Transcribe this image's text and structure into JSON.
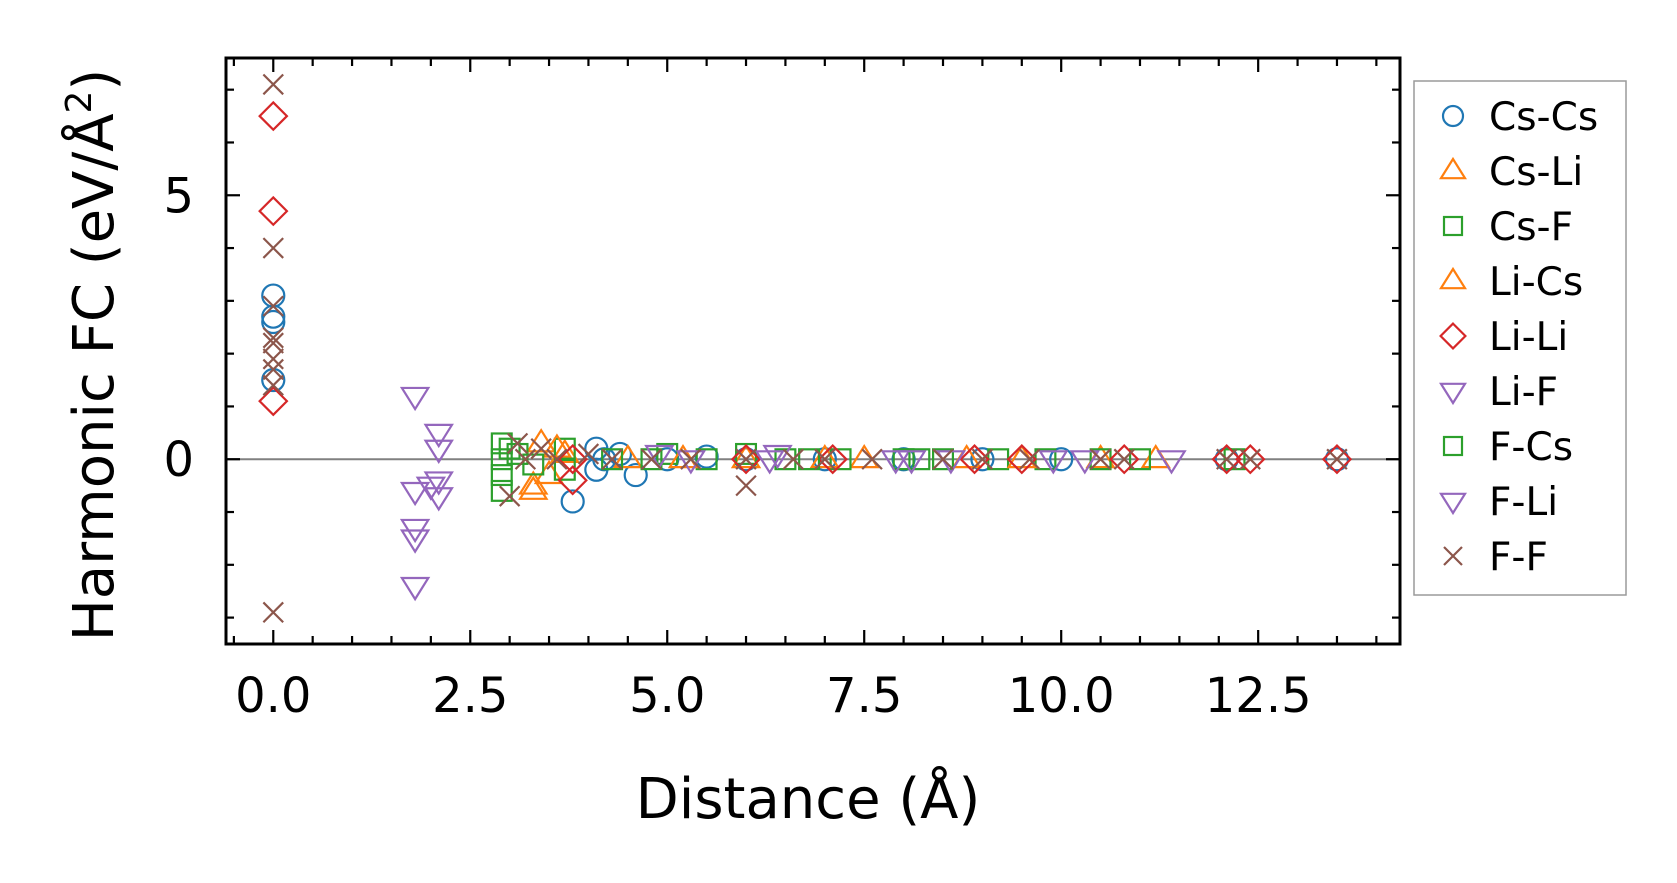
{
  "chart_data": {
    "type": "scatter",
    "xlabel": "Distance (Å)",
    "ylabel": "Harmonic FC (eV/Å",
    "ylabel_sup": "2",
    "ylabel_close": ")",
    "xlim": [
      -0.6,
      14.3
    ],
    "ylim": [
      -3.5,
      7.6
    ],
    "x_ticks": [
      0.0,
      2.5,
      5.0,
      7.5,
      10.0,
      12.5
    ],
    "x_tick_labels": [
      "0.0",
      "2.5",
      "5.0",
      "7.5",
      "10.0",
      "12.5"
    ],
    "y_ticks": [
      0,
      5
    ],
    "y_tick_labels": [
      "0",
      "5"
    ],
    "grid": false,
    "zero_line": true,
    "legend_position": "right",
    "series": [
      {
        "name": "Cs-Cs",
        "marker": "circle",
        "color": "#1f77b4",
        "points": [
          [
            0.0,
            3.1
          ],
          [
            0.0,
            2.7
          ],
          [
            0.0,
            2.6
          ],
          [
            0.0,
            1.5
          ],
          [
            3.8,
            -0.8
          ],
          [
            4.1,
            0.2
          ],
          [
            4.1,
            -0.2
          ],
          [
            4.2,
            0.0
          ],
          [
            4.4,
            0.1
          ],
          [
            4.6,
            -0.3
          ],
          [
            5.0,
            0.0
          ],
          [
            5.5,
            0.05
          ],
          [
            6.0,
            0.0
          ],
          [
            7.0,
            0.0
          ],
          [
            8.0,
            0.0
          ],
          [
            9.0,
            0.0
          ],
          [
            10.0,
            0.0
          ],
          [
            12.1,
            0.0
          ],
          [
            13.5,
            0.0
          ]
        ]
      },
      {
        "name": "Cs-Li",
        "marker": "triangle-up",
        "color": "#ff7f0e",
        "points": [
          [
            3.3,
            -0.6
          ],
          [
            3.4,
            0.3
          ],
          [
            3.5,
            -0.3
          ],
          [
            3.7,
            0.1
          ],
          [
            4.5,
            0.0
          ],
          [
            6.0,
            0.0
          ],
          [
            7.5,
            0.0
          ],
          [
            8.8,
            0.0
          ],
          [
            10.5,
            0.0
          ],
          [
            11.2,
            0.0
          ]
        ]
      },
      {
        "name": "Cs-F",
        "marker": "square",
        "color": "#2ca02c",
        "points": [
          [
            2.9,
            0.3
          ],
          [
            2.9,
            0.0
          ],
          [
            2.9,
            -0.3
          ],
          [
            2.9,
            -0.6
          ],
          [
            3.1,
            0.1
          ],
          [
            3.7,
            0.2
          ],
          [
            3.7,
            -0.2
          ],
          [
            4.3,
            0.0
          ],
          [
            5.0,
            0.1
          ],
          [
            5.5,
            0.0
          ],
          [
            6.0,
            0.1
          ],
          [
            6.5,
            0.0
          ],
          [
            7.2,
            0.0
          ],
          [
            8.0,
            0.0
          ],
          [
            8.5,
            0.0
          ],
          [
            9.2,
            0.0
          ],
          [
            9.8,
            0.0
          ],
          [
            10.5,
            0.0
          ],
          [
            11.0,
            0.0
          ],
          [
            12.2,
            0.0
          ]
        ]
      },
      {
        "name": "Li-Cs",
        "marker": "triangle-up",
        "color": "#ff7f0e",
        "points": [
          [
            3.3,
            -0.5
          ],
          [
            3.6,
            0.2
          ],
          [
            5.2,
            0.0
          ],
          [
            7.0,
            0.0
          ],
          [
            9.5,
            0.0
          ]
        ]
      },
      {
        "name": "Li-Li",
        "marker": "diamond",
        "color": "#d62728",
        "points": [
          [
            0.0,
            6.5
          ],
          [
            0.0,
            4.7
          ],
          [
            0.0,
            1.1
          ],
          [
            3.8,
            0.0
          ],
          [
            3.8,
            -0.4
          ],
          [
            6.0,
            0.0
          ],
          [
            7.1,
            0.0
          ],
          [
            8.9,
            0.0
          ],
          [
            9.5,
            0.0
          ],
          [
            10.8,
            0.0
          ],
          [
            12.1,
            0.0
          ],
          [
            12.4,
            0.0
          ],
          [
            13.5,
            0.0
          ]
        ]
      },
      {
        "name": "Li-F",
        "marker": "triangle-down",
        "color": "#9467bd",
        "points": [
          [
            1.8,
            1.2
          ],
          [
            1.8,
            -0.6
          ],
          [
            1.8,
            -1.3
          ],
          [
            1.8,
            -1.5
          ],
          [
            1.8,
            -2.4
          ],
          [
            2.1,
            0.5
          ],
          [
            2.1,
            0.2
          ],
          [
            2.1,
            -0.4
          ],
          [
            2.1,
            -0.7
          ],
          [
            5.3,
            0.0
          ],
          [
            6.3,
            0.0
          ],
          [
            7.9,
            0.0
          ],
          [
            8.6,
            0.0
          ],
          [
            9.9,
            0.0
          ],
          [
            11.4,
            0.0
          ]
        ]
      },
      {
        "name": "F-Cs",
        "marker": "square",
        "color": "#2ca02c",
        "points": [
          [
            3.0,
            0.2
          ],
          [
            3.3,
            -0.1
          ],
          [
            4.8,
            0.0
          ],
          [
            6.8,
            0.0
          ],
          [
            8.2,
            0.0
          ]
        ]
      },
      {
        "name": "F-Li",
        "marker": "triangle-down",
        "color": "#9467bd",
        "points": [
          [
            2.0,
            -0.5
          ],
          [
            4.9,
            0.1
          ],
          [
            6.4,
            0.1
          ],
          [
            8.1,
            0.0
          ],
          [
            10.3,
            0.0
          ]
        ]
      },
      {
        "name": "F-F",
        "marker": "x",
        "color": "#8c564b",
        "points": [
          [
            0.0,
            7.1
          ],
          [
            0.0,
            4.0
          ],
          [
            0.0,
            2.9
          ],
          [
            0.0,
            2.3
          ],
          [
            0.0,
            2.2
          ],
          [
            0.0,
            1.9
          ],
          [
            0.0,
            1.7
          ],
          [
            0.0,
            1.4
          ],
          [
            0.0,
            -2.9
          ],
          [
            3.0,
            -0.7
          ],
          [
            3.1,
            0.3
          ],
          [
            3.2,
            0.0
          ],
          [
            3.4,
            0.2
          ],
          [
            3.6,
            0.0
          ],
          [
            4.0,
            0.1
          ],
          [
            4.3,
            0.0
          ],
          [
            4.8,
            0.0
          ],
          [
            5.3,
            0.0
          ],
          [
            6.0,
            -0.5
          ],
          [
            6.0,
            0.0
          ],
          [
            6.6,
            0.0
          ],
          [
            7.0,
            0.0
          ],
          [
            7.6,
            0.0
          ],
          [
            8.5,
            0.0
          ],
          [
            9.0,
            0.0
          ],
          [
            9.6,
            0.0
          ],
          [
            10.5,
            0.0
          ],
          [
            10.8,
            0.0
          ],
          [
            12.1,
            0.0
          ],
          [
            12.4,
            0.0
          ],
          [
            13.5,
            0.0
          ]
        ]
      }
    ]
  }
}
